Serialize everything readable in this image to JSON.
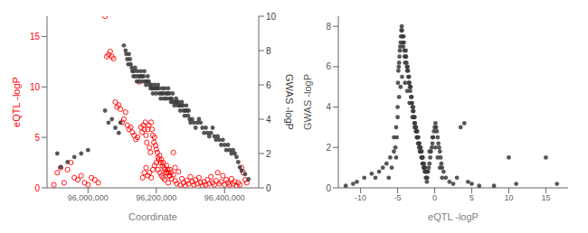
{
  "chart_data": [
    {
      "type": "scatter",
      "xlabel": "Coordinate",
      "ylabel": "eQTL -logP",
      "y2label": "GWAS -logP",
      "xlim": [
        95880000,
        96500000
      ],
      "xticks": [
        {
          "value": 96000000,
          "label": "96,000,000"
        },
        {
          "value": 96200000,
          "label": "96,200,000"
        },
        {
          "value": 96400000,
          "label": "96,400,000"
        }
      ],
      "ylim": [
        0,
        17
      ],
      "yticks": [
        0,
        5,
        10,
        15
      ],
      "y2lim": [
        0,
        10
      ],
      "y2ticks": [
        0,
        2,
        4,
        6,
        8,
        10
      ],
      "grid": false,
      "series": [
        {
          "color": "#ff0000",
          "marker": "open_circle",
          "axis": "y",
          "x": [
            95900000,
            95910000,
            95920000,
            95930000,
            95940000,
            95950000,
            95960000,
            95970000,
            95980000,
            95990000,
            96000000,
            96010000,
            96020000,
            96030000,
            96050000,
            96055000,
            96060000,
            96065000,
            96070000,
            96075000,
            96080000,
            96085000,
            96090000,
            96095000,
            96100000,
            96105000,
            96110000,
            96115000,
            96120000,
            96125000,
            96130000,
            96135000,
            96140000,
            96145000,
            96150000,
            96155000,
            96158000,
            96162000,
            96165000,
            96168000,
            96170000,
            96172000,
            96175000,
            96178000,
            96180000,
            96183000,
            96185000,
            96188000,
            96190000,
            96193000,
            96195000,
            96198000,
            96200000,
            96203000,
            96205000,
            96208000,
            96210000,
            96213000,
            96215000,
            96218000,
            96220000,
            96223000,
            96225000,
            96228000,
            96230000,
            96233000,
            96235000,
            96238000,
            96240000,
            96243000,
            96250000,
            96255000,
            96160000,
            96165000,
            96170000,
            96175000,
            96180000,
            96185000,
            96190000,
            96195000,
            96200000,
            96205000,
            96210000,
            96215000,
            96220000,
            96225000,
            96230000,
            96235000,
            96240000,
            96245000,
            96250000,
            96255000,
            96260000,
            96265000,
            96270000,
            96275000,
            96280000,
            96285000,
            96290000,
            96295000,
            96300000,
            96305000,
            96310000,
            96315000,
            96320000,
            96325000,
            96330000,
            96335000,
            96340000,
            96345000,
            96350000,
            96355000,
            96360000,
            96365000,
            96370000,
            96375000,
            96380000,
            96385000,
            96390000,
            96395000,
            96400000,
            96405000,
            96410000,
            96415000,
            96420000,
            96425000,
            96430000,
            96435000,
            96440000,
            96445000,
            96450000,
            96455000,
            96460000,
            96465000
          ],
          "values": [
            0.3,
            1.5,
            2.0,
            0.5,
            1.8,
            2.5,
            1.0,
            0.8,
            1.2,
            0.5,
            0.3,
            1.0,
            0.8,
            0.5,
            17.0,
            13.0,
            13.2,
            13.5,
            13.0,
            12.8,
            8.5,
            8.0,
            8.2,
            7.8,
            6.5,
            6.8,
            7.5,
            6.2,
            5.8,
            6.0,
            5.5,
            5.2,
            4.8,
            5.0,
            10.5,
            6.0,
            5.5,
            6.2,
            5.8,
            6.5,
            5.2,
            4.5,
            5.8,
            6.2,
            4.0,
            3.5,
            6.5,
            5.8,
            5.2,
            4.5,
            5.0,
            4.2,
            3.8,
            3.5,
            3.0,
            2.8,
            3.2,
            2.5,
            2.8,
            2.2,
            2.5,
            2.0,
            1.8,
            1.5,
            2.2,
            1.8,
            1.5,
            1.2,
            1.8,
            1.5,
            3.5,
            2.0,
            1.0,
            1.5,
            2.0,
            1.2,
            1.5,
            1.0,
            1.8,
            2.2,
            2.5,
            1.8,
            1.5,
            1.2,
            1.0,
            0.8,
            1.5,
            0.5,
            1.2,
            0.9,
            1.3,
            0.7,
            0.4,
            1.6,
            0.3,
            0.9,
            0.5,
            0.2,
            0.7,
            0.4,
            1.1,
            0.6,
            0.3,
            0.8,
            0.4,
            1.0,
            0.5,
            0.2,
            0.6,
            0.3,
            0.8,
            0.4,
            1.1,
            0.5,
            0.3,
            0.7,
            1.5,
            0.4,
            0.6,
            1.2,
            0.3,
            0.8,
            0.5,
            0.3,
            0.9,
            0.4,
            0.6,
            0.2,
            0.5,
            0.3,
            2.0,
            1.5,
            0.8,
            0.5
          ]
        },
        {
          "color": "#3a3a3a",
          "marker": "circle",
          "axis": "y2",
          "x": [
            96105000,
            96110000,
            96112000,
            96115000,
            96118000,
            96120000,
            96123000,
            96125000,
            96128000,
            96130000,
            96133000,
            96135000,
            96138000,
            96140000,
            96143000,
            96145000,
            96148000,
            96150000,
            96153000,
            96155000,
            96158000,
            96160000,
            96163000,
            96165000,
            96168000,
            96170000,
            96173000,
            96175000,
            96178000,
            96180000,
            96183000,
            96185000,
            96188000,
            96190000,
            96193000,
            96195000,
            96198000,
            96200000,
            96203000,
            96205000,
            96208000,
            96210000,
            96213000,
            96215000,
            96218000,
            96220000,
            96223000,
            96225000,
            96228000,
            96230000,
            96233000,
            96235000,
            96238000,
            96240000,
            96243000,
            96245000,
            96248000,
            96250000,
            96253000,
            96255000,
            96258000,
            96260000,
            96263000,
            96265000,
            96268000,
            96270000,
            96273000,
            96275000,
            96278000,
            96280000,
            96283000,
            96285000,
            96288000,
            96290000,
            96293000,
            96295000,
            96298000,
            96300000,
            96305000,
            96310000,
            96315000,
            96320000,
            96325000,
            96330000,
            96335000,
            96340000,
            96345000,
            96350000,
            96355000,
            96360000,
            96365000,
            96370000,
            96375000,
            96380000,
            96385000,
            96390000,
            96395000,
            96400000,
            96405000,
            96410000,
            96415000,
            96420000,
            96425000,
            96430000,
            96435000,
            96050000,
            96060000,
            96070000,
            96080000,
            96090000,
            96095000,
            96000000,
            95980000,
            95960000,
            95940000,
            95920000,
            95910000,
            96440000,
            96445000,
            96450000,
            96460000,
            96470000
          ],
          "values": [
            8.3,
            8.0,
            7.8,
            7.5,
            7.2,
            7.8,
            7.5,
            7.2,
            7.0,
            6.8,
            6.5,
            6.8,
            7.0,
            6.5,
            6.2,
            6.8,
            6.5,
            6.2,
            6.5,
            6.8,
            6.5,
            6.2,
            6.5,
            6.8,
            6.2,
            6.0,
            6.2,
            6.5,
            6.2,
            6.0,
            5.8,
            6.0,
            5.8,
            5.5,
            5.8,
            6.0,
            5.8,
            5.5,
            5.8,
            6.0,
            5.8,
            5.5,
            5.2,
            5.5,
            5.8,
            5.5,
            5.2,
            5.8,
            5.5,
            5.2,
            5.5,
            5.8,
            5.5,
            5.2,
            5.0,
            5.2,
            5.5,
            5.0,
            4.8,
            5.0,
            5.2,
            5.0,
            4.8,
            5.0,
            4.8,
            4.5,
            4.8,
            5.0,
            4.8,
            4.5,
            4.2,
            4.5,
            4.8,
            4.5,
            4.2,
            4.5,
            4.0,
            3.8,
            4.0,
            3.8,
            3.5,
            3.8,
            4.0,
            3.8,
            3.5,
            3.2,
            3.5,
            3.2,
            3.0,
            3.2,
            3.5,
            3.0,
            2.8,
            3.0,
            2.8,
            2.5,
            2.8,
            2.5,
            2.2,
            2.5,
            2.2,
            2.0,
            2.2,
            2.0,
            1.8,
            4.5,
            3.8,
            4.0,
            3.5,
            3.2,
            3.8,
            2.2,
            2.0,
            1.8,
            1.5,
            1.2,
            2.0,
            1.5,
            1.2,
            1.0,
            0.8,
            0.5
          ]
        }
      ]
    },
    {
      "type": "scatter",
      "xlabel": "eQTL -logP",
      "ylabel": "GWAS -logP",
      "xlim": [
        -13,
        18
      ],
      "xticks": [
        -10,
        -5,
        0,
        5,
        10,
        15
      ],
      "ylim": [
        0,
        8.5
      ],
      "yticks": [
        0,
        2,
        4,
        6,
        8
      ],
      "grid": false,
      "series": [
        {
          "color": "#3a3a3a",
          "marker": "circle",
          "axis": "y",
          "x": [
            -12.0,
            -11.0,
            -10.5,
            -9.5,
            -8.5,
            -8.0,
            -7.5,
            -7.0,
            -6.5,
            -6.2,
            -6.0,
            -5.8,
            -5.5,
            -5.3,
            -5.2,
            -5.1,
            -5.0,
            -4.95,
            -4.9,
            -4.85,
            -4.8,
            -4.75,
            -4.7,
            -4.65,
            -4.6,
            -4.55,
            -4.5,
            -4.45,
            -4.4,
            -4.35,
            -4.3,
            -4.25,
            -4.2,
            -4.15,
            -4.1,
            -4.05,
            -4.0,
            -3.95,
            -3.9,
            -3.85,
            -3.8,
            -3.75,
            -3.7,
            -3.65,
            -3.6,
            -3.55,
            -3.5,
            -3.45,
            -3.4,
            -3.35,
            -3.3,
            -3.25,
            -3.2,
            -3.15,
            -3.1,
            -3.05,
            -3.0,
            -2.95,
            -2.9,
            -2.85,
            -2.8,
            -2.75,
            -2.7,
            -2.65,
            -2.6,
            -2.55,
            -2.5,
            -2.45,
            -2.4,
            -2.35,
            -2.3,
            -2.25,
            -2.2,
            -2.15,
            -2.1,
            -2.05,
            -2.0,
            -1.95,
            -1.9,
            -1.85,
            -1.8,
            -1.75,
            -1.7,
            -1.65,
            -1.6,
            -1.55,
            -1.5,
            -1.45,
            -1.4,
            -1.35,
            -1.3,
            -1.25,
            -1.2,
            -1.15,
            -1.1,
            -1.05,
            -1.0,
            -0.9,
            -0.8,
            -0.7,
            -0.6,
            -0.5,
            -0.4,
            -0.3,
            -0.2,
            -0.1,
            0.0,
            0.1,
            0.2,
            0.3,
            0.4,
            0.5,
            0.6,
            0.7,
            0.8,
            0.9,
            1.0,
            1.2,
            1.5,
            2.0,
            2.5,
            3.0,
            3.5,
            4.0,
            4.5,
            5.0,
            6.0,
            8.0,
            10.0,
            11.0,
            15.0,
            16.5,
            -5.5,
            -5.2,
            -5.0,
            -4.8,
            -4.6,
            -4.4,
            -4.0,
            -3.7,
            -3.4,
            -3.0,
            -2.7,
            -2.4,
            -2.0,
            -1.7,
            -1.4,
            -1.0,
            -0.7,
            -0.3,
            0.1,
            0.4,
            0.7,
            1.0
          ],
          "values": [
            0.1,
            0.2,
            0.3,
            0.5,
            0.7,
            0.5,
            0.8,
            1.0,
            1.2,
            0.5,
            1.5,
            1.0,
            1.8,
            2.0,
            1.5,
            2.5,
            3.5,
            5.2,
            5.8,
            6.0,
            6.2,
            6.5,
            6.8,
            7.0,
            7.2,
            7.5,
            7.8,
            8.0,
            7.8,
            7.5,
            7.2,
            7.0,
            7.5,
            7.2,
            6.8,
            6.5,
            6.2,
            6.5,
            6.8,
            6.5,
            6.2,
            6.0,
            5.8,
            6.0,
            5.8,
            5.5,
            5.2,
            5.5,
            5.2,
            5.0,
            4.8,
            5.0,
            4.5,
            4.2,
            4.5,
            4.2,
            4.0,
            3.8,
            4.0,
            3.8,
            3.5,
            3.2,
            3.5,
            3.2,
            3.0,
            2.8,
            3.0,
            2.8,
            2.5,
            2.8,
            2.5,
            2.2,
            2.5,
            2.2,
            2.0,
            2.2,
            2.0,
            1.8,
            2.0,
            1.8,
            1.5,
            1.8,
            1.5,
            1.2,
            1.5,
            1.2,
            1.0,
            1.2,
            1.0,
            0.8,
            1.0,
            0.8,
            0.5,
            0.8,
            0.5,
            0.3,
            0.5,
            0.8,
            1.0,
            1.2,
            1.5,
            1.8,
            2.0,
            2.2,
            2.5,
            2.8,
            3.0,
            3.2,
            3.0,
            2.8,
            2.5,
            2.2,
            2.0,
            1.8,
            1.5,
            1.2,
            1.0,
            0.8,
            0.5,
            0.3,
            0.2,
            0.5,
            3.0,
            3.2,
            0.3,
            0.2,
            0.1,
            0.1,
            1.5,
            0.2,
            1.5,
            0.2,
            2.5,
            3.0,
            4.0,
            4.5,
            5.0,
            5.5,
            5.2,
            4.8,
            4.2,
            3.5,
            3.0,
            2.5,
            1.8,
            1.5,
            1.0,
            0.8,
            1.8,
            2.5,
            2.0,
            1.5,
            1.0,
            0.5
          ]
        }
      ]
    }
  ]
}
